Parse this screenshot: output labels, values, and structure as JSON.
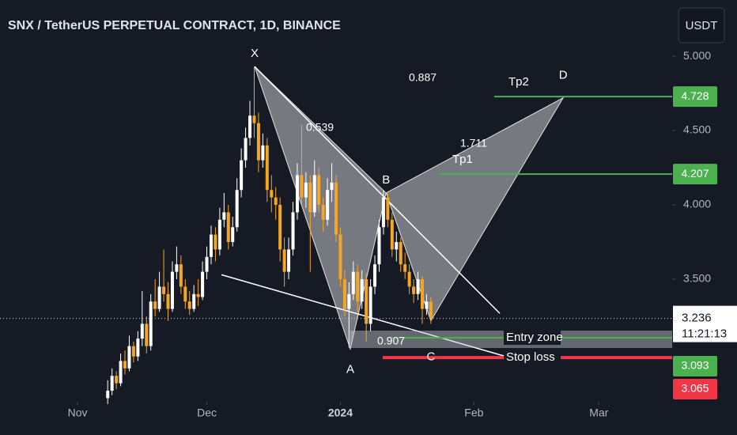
{
  "chart_data": {
    "type": "candlestick",
    "title": "SNX / TetherUS PERPETUAL CONTRACT, 1D, BINANCE",
    "currency": "USDT",
    "xlim": [
      -18,
      138
    ],
    "ylim": [
      2.452,
      5.378
    ],
    "xticks": [
      {
        "value": 0,
        "label": "Nov"
      },
      {
        "value": 30,
        "label": "Dec"
      },
      {
        "value": 61,
        "label": "2024"
      },
      {
        "value": 92,
        "label": "Feb"
      },
      {
        "value": 121,
        "label": "Mar"
      }
    ],
    "yticks": [
      {
        "value": 5,
        "label": "5.000"
      },
      {
        "value": 4.5,
        "label": "4.500"
      },
      {
        "value": 4,
        "label": "4.000"
      },
      {
        "value": 3.5,
        "label": "3.500"
      }
    ],
    "up_color": "#ffffff",
    "down_color": "#f5a623",
    "x": [
      7,
      8,
      9,
      10,
      11,
      12,
      13,
      14,
      15,
      16,
      17,
      18,
      19,
      20,
      21,
      22,
      23,
      24,
      25,
      26,
      27,
      28,
      29,
      30,
      31,
      32,
      33,
      34,
      35,
      36,
      37,
      38,
      39,
      40,
      41,
      42,
      43,
      44,
      45,
      46,
      47,
      48,
      49,
      50,
      51,
      52,
      53,
      54,
      55,
      56,
      57,
      58,
      59,
      60,
      61,
      62,
      63,
      64,
      65,
      66,
      67,
      68,
      69,
      70,
      71,
      72,
      73,
      74,
      75,
      76,
      77,
      78,
      79,
      80,
      81,
      82
    ],
    "ohlc": [
      [
        2.7,
        2.82,
        2.66,
        2.75
      ],
      [
        2.75,
        2.9,
        2.72,
        2.85
      ],
      [
        2.85,
        2.88,
        2.76,
        2.8
      ],
      [
        2.8,
        3.0,
        2.78,
        2.95
      ],
      [
        2.95,
        3.02,
        2.86,
        2.9
      ],
      [
        2.9,
        3.12,
        2.88,
        3.05
      ],
      [
        3.05,
        3.08,
        2.94,
        2.98
      ],
      [
        2.98,
        3.15,
        2.95,
        3.1
      ],
      [
        3.1,
        3.42,
        3.05,
        3.2
      ],
      [
        3.2,
        3.25,
        3.0,
        3.05
      ],
      [
        3.05,
        3.4,
        3.02,
        3.35
      ],
      [
        3.35,
        3.5,
        3.25,
        3.3
      ],
      [
        3.3,
        3.55,
        3.28,
        3.45
      ],
      [
        3.45,
        3.7,
        3.35,
        3.4
      ],
      [
        3.4,
        3.48,
        3.22,
        3.3
      ],
      [
        3.3,
        3.62,
        3.28,
        3.55
      ],
      [
        3.55,
        3.72,
        3.5,
        3.6
      ],
      [
        3.6,
        3.66,
        3.4,
        3.45
      ],
      [
        3.45,
        3.5,
        3.3,
        3.35
      ],
      [
        3.35,
        3.42,
        3.26,
        3.3
      ],
      [
        3.3,
        3.46,
        3.28,
        3.4
      ],
      [
        3.4,
        3.5,
        3.32,
        3.38
      ],
      [
        3.38,
        3.62,
        3.36,
        3.55
      ],
      [
        3.55,
        3.72,
        3.5,
        3.65
      ],
      [
        3.65,
        3.86,
        3.6,
        3.8
      ],
      [
        3.8,
        3.85,
        3.62,
        3.7
      ],
      [
        3.7,
        3.98,
        3.66,
        3.9
      ],
      [
        3.9,
        4.08,
        3.85,
        3.95
      ],
      [
        3.95,
        4.0,
        3.7,
        3.75
      ],
      [
        3.75,
        3.92,
        3.72,
        3.85
      ],
      [
        3.85,
        4.18,
        3.82,
        4.1
      ],
      [
        4.1,
        4.38,
        4.05,
        4.3
      ],
      [
        4.3,
        4.52,
        4.25,
        4.45
      ],
      [
        4.45,
        4.7,
        4.4,
        4.6
      ],
      [
        4.6,
        4.93,
        4.45,
        4.55
      ],
      [
        4.55,
        4.62,
        4.22,
        4.3
      ],
      [
        4.3,
        4.48,
        4.25,
        4.4
      ],
      [
        4.4,
        4.45,
        4.02,
        4.1
      ],
      [
        4.1,
        4.2,
        3.95,
        4.05
      ],
      [
        4.05,
        4.12,
        3.9,
        4.0
      ],
      [
        4.0,
        4.05,
        3.62,
        3.7
      ],
      [
        3.7,
        3.78,
        3.45,
        3.55
      ],
      [
        3.55,
        3.78,
        3.5,
        3.7
      ],
      [
        3.7,
        4.02,
        3.66,
        3.95
      ],
      [
        3.95,
        4.28,
        3.9,
        4.2
      ],
      [
        4.2,
        4.54,
        4.0,
        4.05
      ],
      [
        4.05,
        4.22,
        3.98,
        4.15
      ],
      [
        4.15,
        4.2,
        3.55,
        3.95
      ],
      [
        3.95,
        4.3,
        3.92,
        4.2
      ],
      [
        4.2,
        4.25,
        3.95,
        4.0
      ],
      [
        4.0,
        4.05,
        3.82,
        3.9
      ],
      [
        3.9,
        4.18,
        3.86,
        4.1
      ],
      [
        4.1,
        4.28,
        4.02,
        4.15
      ],
      [
        4.15,
        4.2,
        3.75,
        3.8
      ],
      [
        3.8,
        3.85,
        3.45,
        3.5
      ],
      [
        3.5,
        3.56,
        3.25,
        3.3
      ],
      [
        3.3,
        3.48,
        3.04,
        3.4
      ],
      [
        3.4,
        3.62,
        3.36,
        3.55
      ],
      [
        3.55,
        3.6,
        3.28,
        3.35
      ],
      [
        3.35,
        3.56,
        3.3,
        3.5
      ],
      [
        3.5,
        3.54,
        3.08,
        3.2
      ],
      [
        3.2,
        3.5,
        3.15,
        3.45
      ],
      [
        3.45,
        3.66,
        3.4,
        3.6
      ],
      [
        3.6,
        3.9,
        3.55,
        3.85
      ],
      [
        3.85,
        4.1,
        3.8,
        4.05
      ],
      [
        4.05,
        4.08,
        3.85,
        3.9
      ],
      [
        3.9,
        3.95,
        3.65,
        3.7
      ],
      [
        3.7,
        3.82,
        3.62,
        3.75
      ],
      [
        3.75,
        3.78,
        3.55,
        3.6
      ],
      [
        3.6,
        3.68,
        3.5,
        3.55
      ],
      [
        3.55,
        3.6,
        3.4,
        3.45
      ],
      [
        3.45,
        3.5,
        3.34,
        3.4
      ],
      [
        3.4,
        3.55,
        3.36,
        3.5
      ],
      [
        3.5,
        3.52,
        3.2,
        3.3
      ],
      [
        3.3,
        3.4,
        3.26,
        3.35
      ],
      [
        3.35,
        3.38,
        3.2,
        3.236
      ]
    ],
    "pattern": [
      {
        "label": "X",
        "x": 41.1,
        "y": 4.93
      },
      {
        "label": "A",
        "x": 63.3,
        "y": 3.03
      },
      {
        "label": "B",
        "x": 71.6,
        "y": 4.08
      },
      {
        "label": "C",
        "x": 82,
        "y": 3.22
      },
      {
        "label": "D",
        "x": 112.7,
        "y": 4.72
      }
    ],
    "ratios": [
      0.887,
      0.539,
      1.711,
      0.907
    ],
    "lines": [
      {
        "x": [
          41.1,
          98
        ],
        "y": [
          4.93,
          3.27
        ]
      },
      {
        "x": [
          33.4,
          99.4
        ],
        "y": [
          3.53,
          2.98
        ]
      }
    ],
    "levels": [
      {
        "name": "Tp2",
        "value": 4.728,
        "start": 96.7,
        "color": "#4caf50"
      },
      {
        "name": "Tp1",
        "value": 4.207,
        "start": 83.9,
        "color": "#4caf50"
      },
      {
        "name": "Entry zone",
        "value": 3.106,
        "start": 72.8,
        "color": "#4caf50",
        "band": [
          3.037,
          3.154
        ],
        "band_start": 63.3
      },
      {
        "name": "Stop loss",
        "value": 2.973,
        "start": 70.8,
        "color": "#f23645"
      }
    ],
    "last_price": 3.236,
    "countdown": "11:21:13",
    "scale_tags": [
      3.093,
      3.065
    ]
  }
}
